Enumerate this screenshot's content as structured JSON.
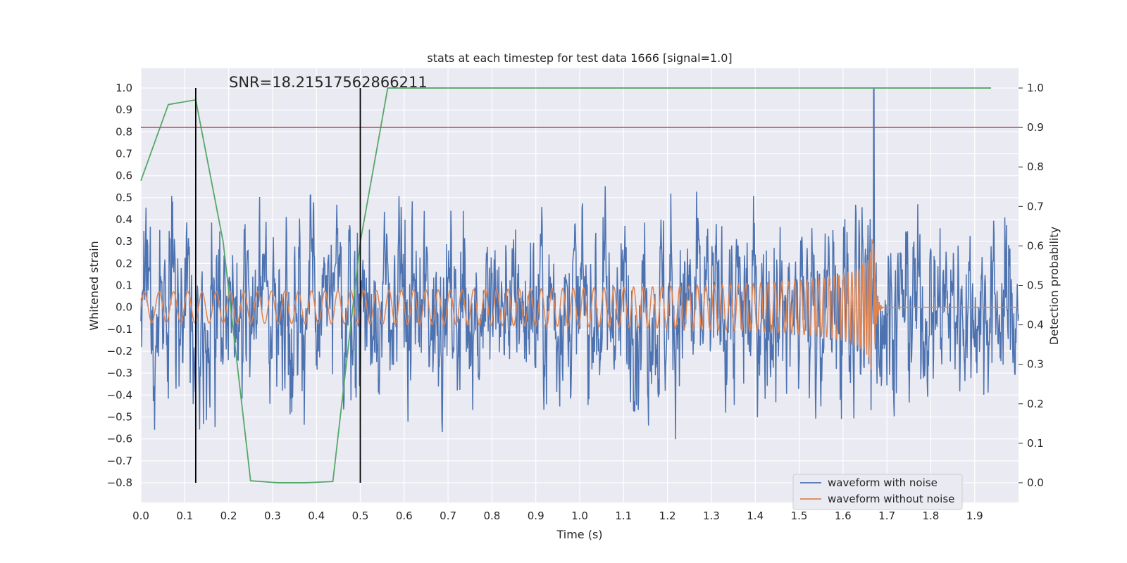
{
  "chart_data": {
    "type": "line",
    "title": "stats at each timestep for test data 1666 [signal=1.0]",
    "xlabel": "Time (s)",
    "ylabel": "Whitened strain",
    "y2label": "Detection probability",
    "xlim": [
      0.0,
      2.0
    ],
    "ylim": [
      -0.89,
      1.09
    ],
    "y2lim": [
      -0.05,
      1.05
    ],
    "x_ticks": [
      "0.0",
      "0.1",
      "0.2",
      "0.3",
      "0.4",
      "0.5",
      "0.6",
      "0.7",
      "0.8",
      "0.9",
      "1.0",
      "1.1",
      "1.2",
      "1.3",
      "1.4",
      "1.5",
      "1.6",
      "1.7",
      "1.8",
      "1.9"
    ],
    "y_ticks": [
      "−0.8",
      "−0.7",
      "−0.6",
      "−0.5",
      "−0.4",
      "−0.3",
      "−0.2",
      "−0.1",
      "0.0",
      "0.1",
      "0.2",
      "0.3",
      "0.4",
      "0.5",
      "0.6",
      "0.7",
      "0.8",
      "0.9",
      "1.0"
    ],
    "y2_ticks": [
      "0.0",
      "0.1",
      "0.2",
      "0.3",
      "0.4",
      "0.5",
      "0.6",
      "0.7",
      "0.8",
      "0.9",
      "1.0"
    ],
    "grid": true,
    "legend_position": "lower-right",
    "annotation": "SNR=18.21517562866211",
    "colors": {
      "noisy": "#4c72b0",
      "clean": "#dd8452",
      "probability": "#55a868",
      "threshold": "#c44e52",
      "vlines": "#000000",
      "plot_bg": "#eaeaf2",
      "grid": "#ffffff"
    },
    "series": [
      {
        "name": "waveform with noise",
        "axis": "left",
        "description_values": {
          "x_start": 0.0,
          "x_end": 2.0,
          "peak": 1.0,
          "min": -0.8
        }
      },
      {
        "name": "waveform without noise",
        "axis": "left",
        "chirp": {
          "amplitude_start": 0.07,
          "amplitude_peak": 0.54,
          "merger_time": 1.67,
          "ringdown_end": 1.69,
          "freq_start_hz": 30
        }
      },
      {
        "axis": "right",
        "x": [
          0.0,
          0.0625,
          0.125,
          0.1875,
          0.25,
          0.3125,
          0.375,
          0.4375,
          0.5,
          0.5625,
          0.625,
          0.6875,
          0.75,
          0.8125,
          0.875,
          0.9375,
          1.0,
          1.0625,
          1.125,
          1.1875,
          1.25,
          1.3125,
          1.375,
          1.4375,
          1.5,
          1.5625,
          1.625,
          1.6875,
          1.75,
          1.8125,
          1.875,
          1.9375
        ],
        "values": [
          0.765,
          0.958,
          0.97,
          0.61,
          0.005,
          0.0,
          0.0,
          0.003,
          0.61,
          1.0,
          1.0,
          1.0,
          1.0,
          1.0,
          1.0,
          1.0,
          1.0,
          1.0,
          1.0,
          1.0,
          1.0,
          1.0,
          1.0,
          1.0,
          1.0,
          1.0,
          1.0,
          1.0,
          1.0,
          1.0,
          1.0,
          1.0
        ]
      }
    ],
    "threshold_y2": 0.9,
    "vertical_lines_x": [
      0.125,
      0.5
    ],
    "vertical_lines_y2": [
      0.0,
      1.0
    ]
  },
  "legend": {
    "items": [
      {
        "label": "waveform with noise",
        "color": "#4c72b0"
      },
      {
        "label": "waveform without noise",
        "color": "#dd8452"
      }
    ]
  }
}
